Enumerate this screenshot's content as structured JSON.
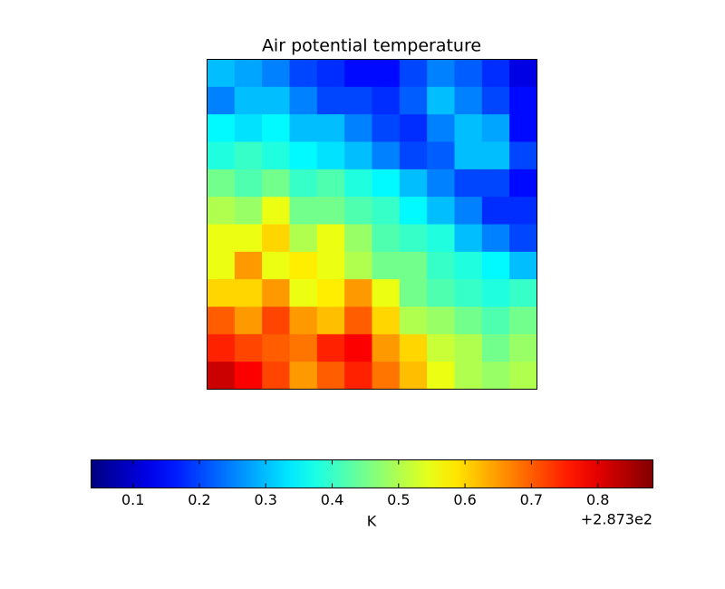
{
  "chart_data": {
    "type": "heatmap",
    "title": "Air potential temperature",
    "colormap": "jet",
    "z": [
      [
        0.3,
        0.28,
        0.25,
        0.2,
        0.18,
        0.15,
        0.15,
        0.2,
        0.25,
        0.22,
        0.18,
        0.12
      ],
      [
        0.25,
        0.3,
        0.3,
        0.25,
        0.2,
        0.2,
        0.18,
        0.22,
        0.3,
        0.25,
        0.2,
        0.15
      ],
      [
        0.35,
        0.33,
        0.35,
        0.3,
        0.3,
        0.25,
        0.2,
        0.18,
        0.25,
        0.3,
        0.28,
        0.15
      ],
      [
        0.38,
        0.4,
        0.38,
        0.35,
        0.33,
        0.3,
        0.25,
        0.2,
        0.22,
        0.3,
        0.3,
        0.2
      ],
      [
        0.45,
        0.42,
        0.45,
        0.4,
        0.42,
        0.38,
        0.35,
        0.3,
        0.25,
        0.2,
        0.2,
        0.15
      ],
      [
        0.5,
        0.48,
        0.55,
        0.45,
        0.45,
        0.42,
        0.4,
        0.35,
        0.3,
        0.25,
        0.18,
        0.18
      ],
      [
        0.55,
        0.55,
        0.6,
        0.5,
        0.55,
        0.48,
        0.42,
        0.4,
        0.38,
        0.3,
        0.25,
        0.2
      ],
      [
        0.55,
        0.65,
        0.55,
        0.58,
        0.55,
        0.5,
        0.45,
        0.45,
        0.4,
        0.38,
        0.35,
        0.3
      ],
      [
        0.6,
        0.6,
        0.65,
        0.55,
        0.58,
        0.65,
        0.55,
        0.45,
        0.42,
        0.4,
        0.38,
        0.4
      ],
      [
        0.7,
        0.65,
        0.72,
        0.65,
        0.62,
        0.7,
        0.6,
        0.5,
        0.48,
        0.45,
        0.42,
        0.45
      ],
      [
        0.75,
        0.72,
        0.7,
        0.68,
        0.75,
        0.78,
        0.65,
        0.6,
        0.52,
        0.5,
        0.45,
        0.48
      ],
      [
        0.82,
        0.78,
        0.72,
        0.65,
        0.7,
        0.75,
        0.68,
        0.62,
        0.55,
        0.5,
        0.48,
        0.5
      ]
    ],
    "clim": [
      0.037,
      0.883
    ],
    "cticks": [
      0.1,
      0.2,
      0.3,
      0.4,
      0.5,
      0.6,
      0.7,
      0.8
    ],
    "colorbar_label": "K",
    "offset_text": "+2.873e2"
  }
}
